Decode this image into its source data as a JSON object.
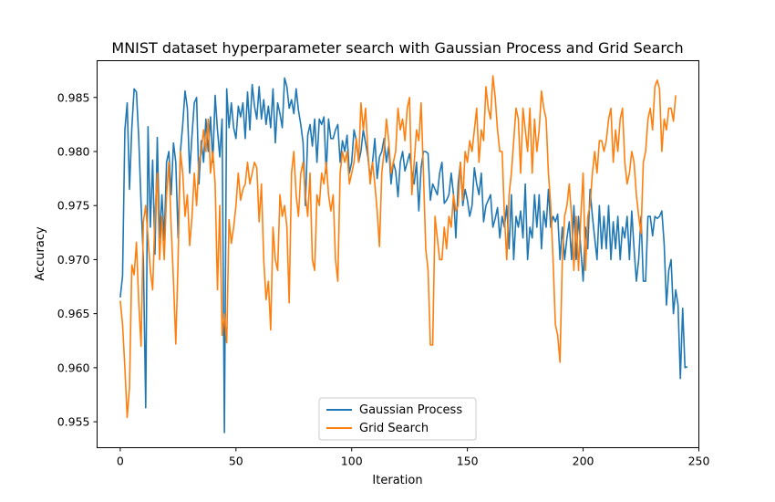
{
  "chart_data": {
    "type": "line",
    "title": "MNIST dataset hyperparameter search with Gaussian Process and Grid Search",
    "xlabel": "Iteration",
    "ylabel": "Accuracy",
    "xlim": [
      -10,
      250
    ],
    "ylim": [
      0.9526,
      0.9884
    ],
    "xticks": [
      0,
      50,
      100,
      150,
      200,
      250
    ],
    "yticks": [
      0.955,
      0.96,
      0.965,
      0.97,
      0.975,
      0.98,
      0.985
    ],
    "grid": false,
    "legend_position": "lower-center",
    "series": [
      {
        "name": "Gaussian Process",
        "color": "#1f77b4",
        "values": [
          0.9665,
          0.9685,
          0.982,
          0.9845,
          0.9765,
          0.9822,
          0.9858,
          0.9855,
          0.9812,
          0.9752,
          0.97,
          0.9563,
          0.9823,
          0.973,
          0.9792,
          0.9705,
          0.9813,
          0.972,
          0.976,
          0.9718,
          0.979,
          0.98,
          0.976,
          0.9808,
          0.979,
          0.972,
          0.98,
          0.9825,
          0.9856,
          0.984,
          0.978,
          0.9815,
          0.9845,
          0.985,
          0.977,
          0.981,
          0.979,
          0.983,
          0.98,
          0.9832,
          0.979,
          0.9852,
          0.982,
          0.9795,
          0.983,
          0.954,
          0.9858,
          0.9822,
          0.9845,
          0.9822,
          0.9812,
          0.9842,
          0.9832,
          0.9845,
          0.9812,
          0.9855,
          0.982,
          0.9862,
          0.9842,
          0.983,
          0.986,
          0.983,
          0.9848,
          0.9825,
          0.9842,
          0.9822,
          0.9858,
          0.9808,
          0.9845,
          0.9835,
          0.9822,
          0.9868,
          0.986,
          0.984,
          0.9848,
          0.9835,
          0.9858,
          0.9838,
          0.9825,
          0.9808,
          0.975,
          0.9815,
          0.9825,
          0.9805,
          0.983,
          0.979,
          0.983,
          0.9825,
          0.9832,
          0.978,
          0.983,
          0.9812,
          0.9812,
          0.982,
          0.9825,
          0.979,
          0.981,
          0.98,
          0.9815,
          0.978,
          0.979,
          0.982,
          0.981,
          0.979,
          0.98,
          0.982,
          0.9808,
          0.9795,
          0.9775,
          0.979,
          0.9812,
          0.9775,
          0.9795,
          0.98,
          0.9812,
          0.979,
          0.9805,
          0.977,
          0.979,
          0.9782,
          0.9758,
          0.979,
          0.98,
          0.9782,
          0.979,
          0.9798,
          0.978,
          0.977,
          0.979,
          0.9745,
          0.9785,
          0.98,
          0.98,
          0.9798,
          0.9755,
          0.977,
          0.9765,
          0.976,
          0.978,
          0.979,
          0.9752,
          0.9755,
          0.976,
          0.978,
          0.976,
          0.972,
          0.977,
          0.979,
          0.975,
          0.9765,
          0.9755,
          0.974,
          0.975,
          0.9785,
          0.977,
          0.976,
          0.978,
          0.9735,
          0.975,
          0.9755,
          0.976,
          0.973,
          0.9738,
          0.9748,
          0.972,
          0.974,
          0.973,
          0.975,
          0.971,
          0.976,
          0.97,
          0.974,
          0.973,
          0.9745,
          0.972,
          0.977,
          0.97,
          0.973,
          0.972,
          0.976,
          0.973,
          0.976,
          0.971,
          0.9745,
          0.973,
          0.9765,
          0.973,
          0.974,
          0.9735,
          0.9742,
          0.97,
          0.973,
          0.97,
          0.972,
          0.9735,
          0.97,
          0.975,
          0.97,
          0.974,
          0.971,
          0.968,
          0.973,
          0.971,
          0.9765,
          0.974,
          0.972,
          0.97,
          0.975,
          0.971,
          0.974,
          0.971,
          0.975,
          0.97,
          0.9735,
          0.971,
          0.974,
          0.97,
          0.973,
          0.972,
          0.974,
          0.97,
          0.9745,
          0.971,
          0.968,
          0.97,
          0.974,
          0.968,
          0.968,
          0.974,
          0.974,
          0.9722,
          0.974,
          0.9738,
          0.974,
          0.9745,
          0.9715,
          0.9658,
          0.969,
          0.97,
          0.965,
          0.9672,
          0.9658,
          0.959,
          0.9655,
          0.96,
          0.9601
        ],
        "values_note_first": 0.9665
      },
      {
        "name": "Grid Search",
        "color": "#ff7f0e",
        "values": [
          0.9662,
          0.964,
          0.96,
          0.9554,
          0.9582,
          0.9695,
          0.9686,
          0.9716,
          0.966,
          0.962,
          0.9735,
          0.975,
          0.972,
          0.969,
          0.9672,
          0.974,
          0.978,
          0.97,
          0.974,
          0.97,
          0.976,
          0.979,
          0.973,
          0.968,
          0.9622,
          0.97,
          0.98,
          0.978,
          0.974,
          0.976,
          0.9713,
          0.974,
          0.978,
          0.975,
          0.979,
          0.98,
          0.982,
          0.98,
          0.983,
          0.978,
          0.98,
          0.977,
          0.9672,
          0.975,
          0.963,
          0.965,
          0.9623,
          0.9737,
          0.9715,
          0.973,
          0.975,
          0.978,
          0.9755,
          0.9765,
          0.977,
          0.979,
          0.977,
          0.978,
          0.979,
          0.9785,
          0.9735,
          0.977,
          0.97,
          0.9663,
          0.968,
          0.9635,
          0.973,
          0.97,
          0.969,
          0.976,
          0.974,
          0.975,
          0.973,
          0.966,
          0.978,
          0.98,
          0.976,
          0.974,
          0.978,
          0.979,
          0.976,
          0.974,
          0.978,
          0.97,
          0.969,
          0.976,
          0.975,
          0.978,
          0.977,
          0.979,
          0.976,
          0.9745,
          0.976,
          0.97,
          0.968,
          0.978,
          0.98,
          0.979,
          0.98,
          0.977,
          0.978,
          0.979,
          0.9812,
          0.979,
          0.9845,
          0.982,
          0.984,
          0.98,
          0.977,
          0.979,
          0.977,
          0.9745,
          0.9712,
          0.978,
          0.98,
          0.983,
          0.981,
          0.978,
          0.979,
          0.98,
          0.984,
          0.982,
          0.983,
          0.981,
          0.984,
          0.985,
          0.976,
          0.979,
          0.982,
          0.981,
          0.9845,
          0.978,
          0.971,
          0.969,
          0.9621,
          0.9621,
          0.974,
          0.972,
          0.97,
          0.97,
          0.973,
          0.971,
          0.974,
          0.973,
          0.976,
          0.9745,
          0.975,
          0.979,
          0.9755,
          0.98,
          0.979,
          0.981,
          0.98,
          0.982,
          0.984,
          0.979,
          0.982,
          0.981,
          0.986,
          0.984,
          0.983,
          0.987,
          0.985,
          0.982,
          0.98,
          0.98,
          0.974,
          0.97,
          0.976,
          0.978,
          0.981,
          0.984,
          0.983,
          0.978,
          0.984,
          0.982,
          0.98,
          0.984,
          0.978,
          0.983,
          0.98,
          0.982,
          0.9856,
          0.984,
          0.983,
          0.978,
          0.975,
          0.97,
          0.964,
          0.963,
          0.9605,
          0.97,
          0.974,
          0.975,
          0.977,
          0.974,
          0.969,
          0.974,
          0.969,
          0.974,
          0.978,
          0.969,
          0.974,
          0.975,
          0.978,
          0.98,
          0.978,
          0.981,
          0.981,
          0.98,
          0.981,
          0.983,
          0.984,
          0.979,
          0.982,
          0.98,
          0.983,
          0.984,
          0.979,
          0.977,
          0.978,
          0.98,
          0.979,
          0.976,
          0.974,
          0.9724,
          0.979,
          0.98,
          0.983,
          0.984,
          0.982,
          0.986,
          0.9866,
          0.9858,
          0.98,
          0.983,
          0.982,
          0.984,
          0.984,
          0.9828,
          0.9852
        ]
      }
    ]
  }
}
